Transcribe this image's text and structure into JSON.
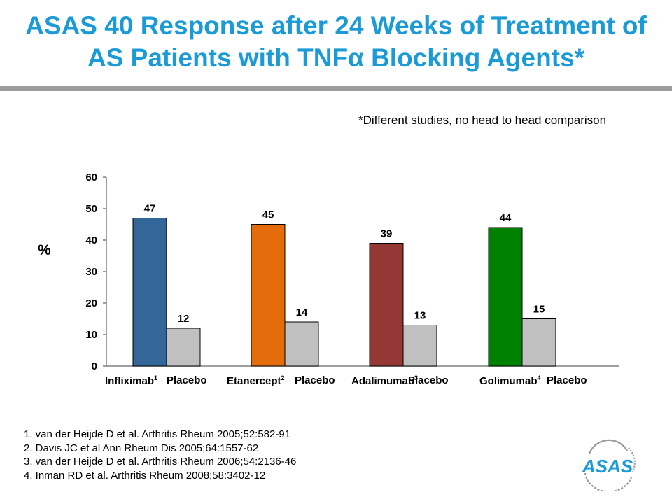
{
  "header": {
    "title_line1": "ASAS 40 Response after 24 Weeks of Treatment of",
    "title_line2": "AS Patients with TNFα Blocking Agents*"
  },
  "note": "*Different studies, no head to head comparison",
  "chart_data": {
    "type": "bar",
    "ylabel": "%",
    "ylim": [
      0,
      60
    ],
    "yticks": [
      0,
      10,
      20,
      30,
      40,
      50,
      60
    ],
    "grid": false,
    "bars": [
      {
        "label": "Infliximab",
        "sup": "1",
        "value": 47,
        "color": "#336699"
      },
      {
        "label": "Placebo",
        "sup": "",
        "value": 12,
        "color": "#c0c0c0"
      },
      {
        "label": "Etanercept",
        "sup": "2",
        "value": 45,
        "color": "#e46c0a"
      },
      {
        "label": "Placebo",
        "sup": "",
        "value": 14,
        "color": "#c0c0c0"
      },
      {
        "label": "Adalimumab",
        "sup": "3",
        "value": 39,
        "color": "#953735"
      },
      {
        "label": "Placebo",
        "sup": "",
        "value": 13,
        "color": "#c0c0c0"
      },
      {
        "label": "Golimumab",
        "sup": "4",
        "value": 44,
        "color": "#008000"
      },
      {
        "label": "Placebo",
        "sup": "",
        "value": 15,
        "color": "#c0c0c0"
      }
    ]
  },
  "references": [
    "1. van der Heijde D et al. Arthritis Rheum 2005;52:582-91",
    "2. Davis JC et al Ann Rheum Dis 2005;64:1557-62",
    "3. van der Heijde D et al. Arthritis Rheum 2006;54:2136-46",
    "4. Inman RD et al. Arthritis Rheum 2008;58:3402-12"
  ],
  "logo": {
    "text": "ASAS",
    "color": "#1a9bd7"
  }
}
